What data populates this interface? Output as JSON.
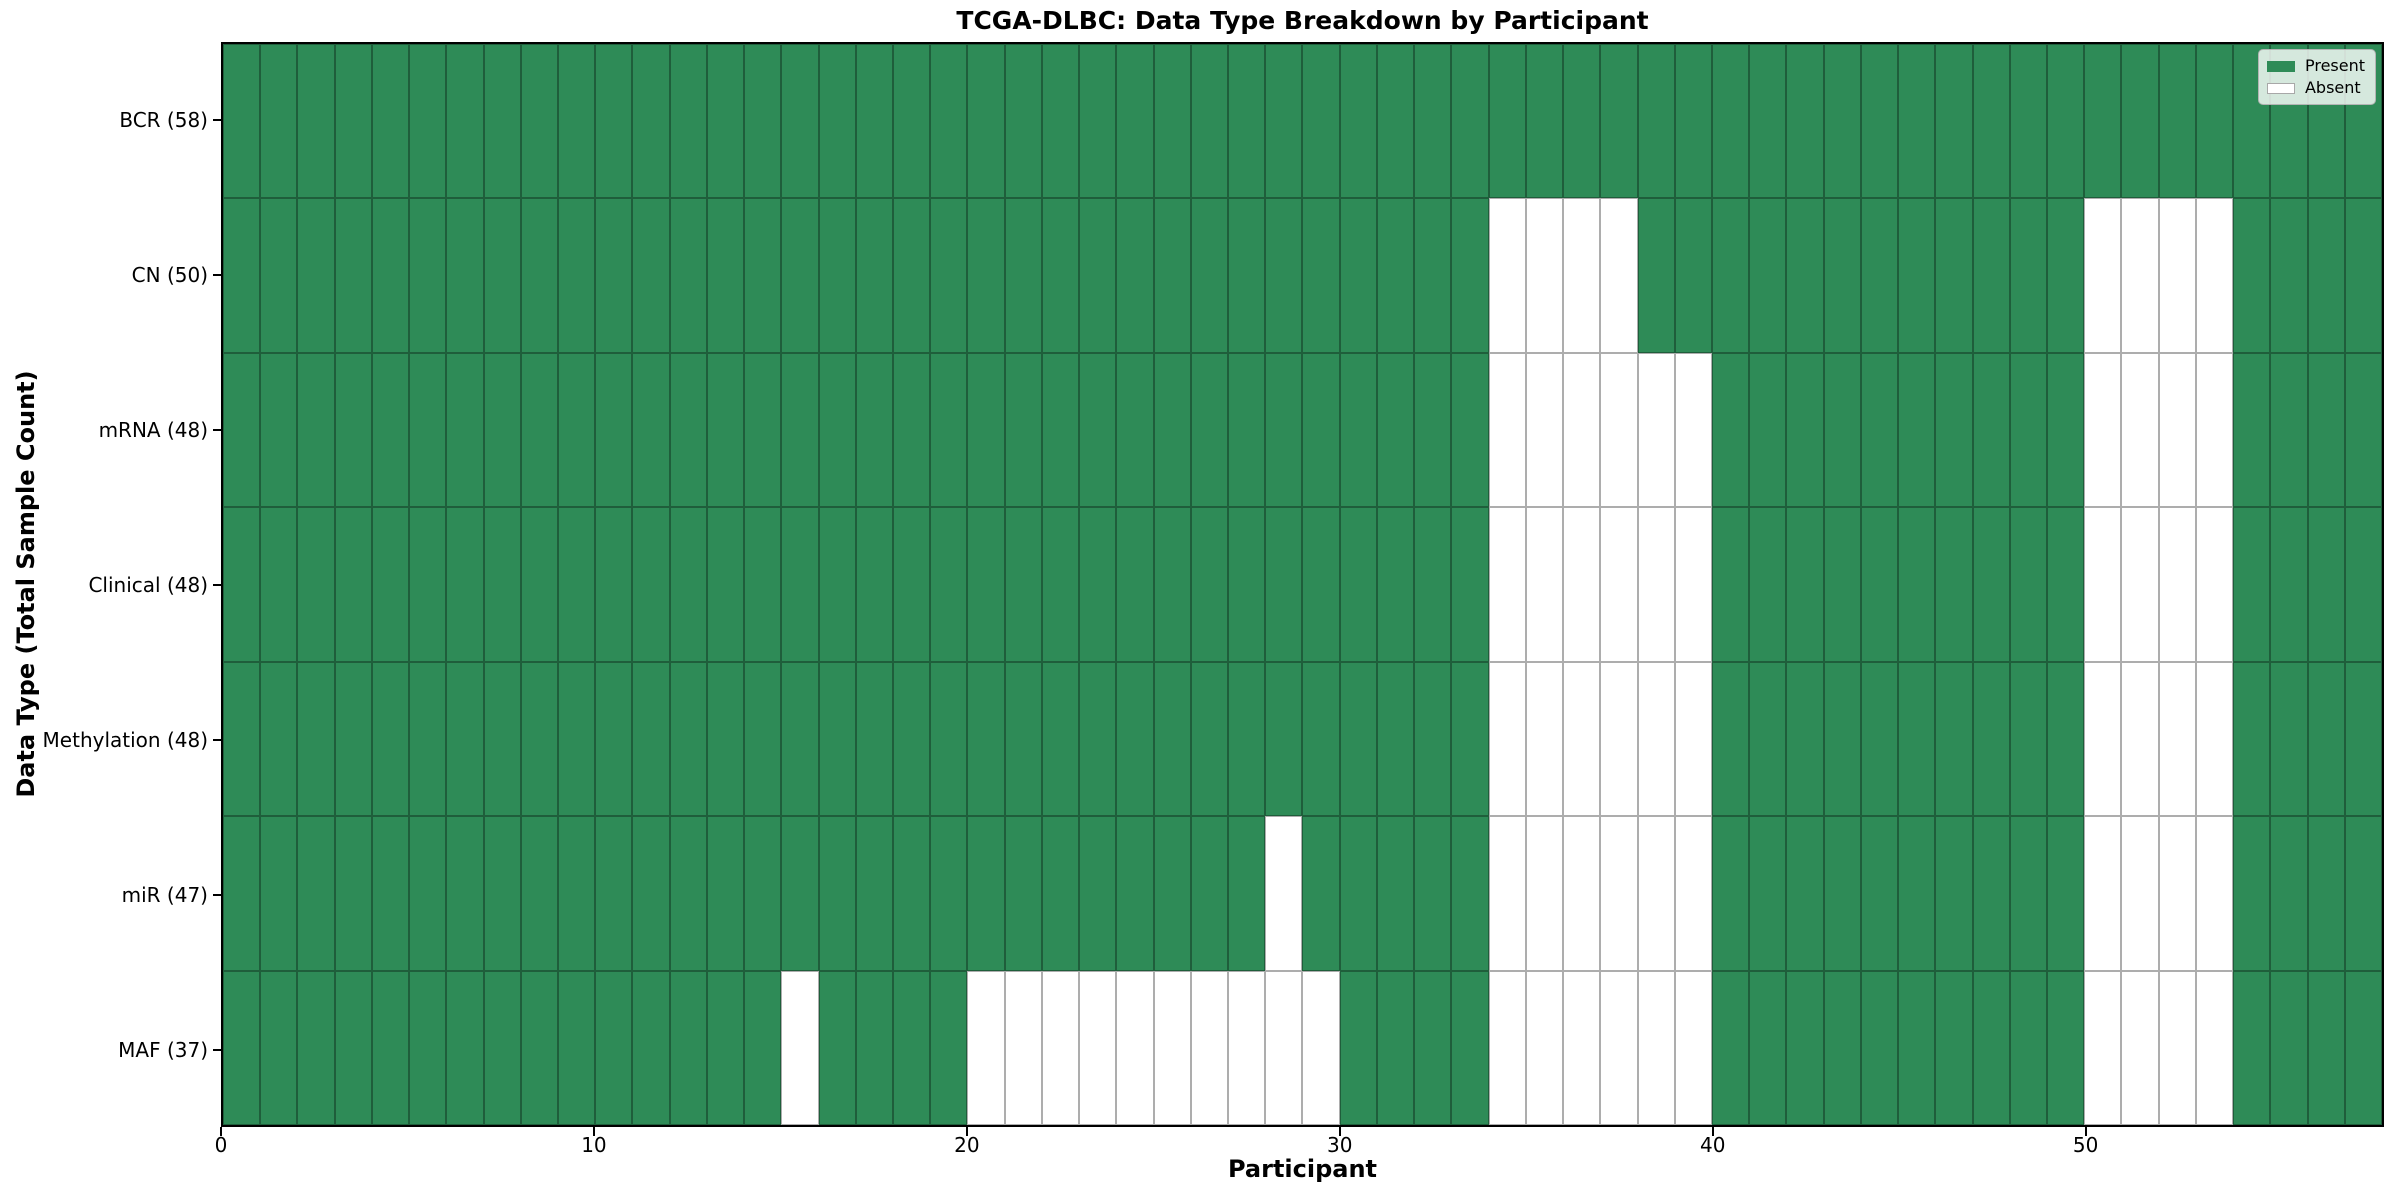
{
  "chart_data": {
    "type": "heatmap",
    "title": "TCGA-DLBC: Data Type Breakdown by Participant",
    "xlabel": "Participant",
    "ylabel": "Data Type (Total Sample Count)",
    "n_participants": 58,
    "x_ticks": [
      0,
      10,
      20,
      30,
      40,
      50
    ],
    "grid": "cell-borders-on",
    "legend": {
      "present": "Present",
      "absent": "Absent",
      "position": "upper right"
    },
    "colors": {
      "present": "#2e8b57",
      "absent": "#ffffff",
      "grid_line": "#00000052",
      "spine": "#000000"
    },
    "rows": [
      {
        "label": "BCR",
        "total": 58,
        "display": "BCR (58)",
        "absent_participants": []
      },
      {
        "label": "CN",
        "total": 50,
        "display": "CN (50)",
        "absent_participants": [
          34,
          35,
          36,
          37,
          50,
          51,
          52,
          53
        ]
      },
      {
        "label": "mRNA",
        "total": 48,
        "display": "mRNA (48)",
        "absent_participants": [
          34,
          35,
          36,
          37,
          38,
          39,
          50,
          51,
          52,
          53
        ]
      },
      {
        "label": "Clinical",
        "total": 48,
        "display": "Clinical (48)",
        "absent_participants": [
          34,
          35,
          36,
          37,
          38,
          39,
          50,
          51,
          52,
          53
        ]
      },
      {
        "label": "Methylation",
        "total": 48,
        "display": "Methylation (48)",
        "absent_participants": [
          34,
          35,
          36,
          37,
          38,
          39,
          50,
          51,
          52,
          53
        ]
      },
      {
        "label": "miR",
        "total": 47,
        "display": "miR (47)",
        "absent_participants": [
          28,
          34,
          35,
          36,
          37,
          38,
          39,
          50,
          51,
          52,
          53
        ]
      },
      {
        "label": "MAF",
        "total": 37,
        "display": "MAF (37)",
        "absent_participants": [
          15,
          20,
          21,
          22,
          23,
          24,
          25,
          26,
          27,
          28,
          29,
          34,
          35,
          36,
          37,
          38,
          39,
          50,
          51,
          52,
          53
        ]
      }
    ]
  }
}
